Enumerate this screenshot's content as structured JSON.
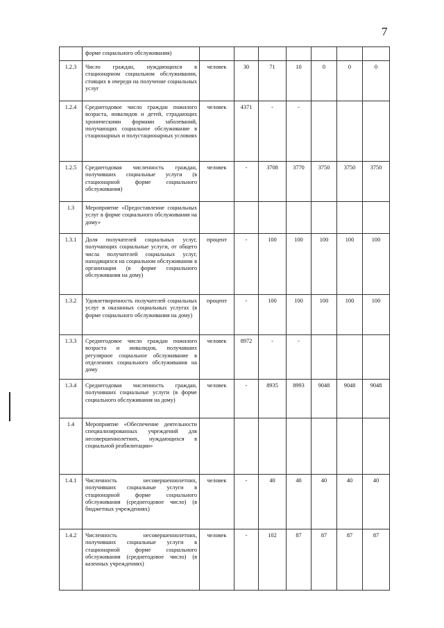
{
  "page_number": "7",
  "rows": [
    {
      "num": "",
      "name": "форме социального обслуживания)",
      "unit": "",
      "values": [
        "",
        "",
        "",
        "",
        "",
        ""
      ]
    },
    {
      "num": "1.2.3",
      "name": "Число граждан, нуждающихся в стационарном социальном обслуживании, стоящих в очереди на получение социальных услуг",
      "unit": "человек",
      "values": [
        "30",
        "71",
        "10",
        "0",
        "0",
        "0"
      ]
    },
    {
      "num": "1.2.4",
      "name": "Среднегодовое число граждан пожилого возраста, инвалидов и детей, страдающих хроническими формами заболеваний, получающих социальное обслуживание в стационарных и полустационарных условиях",
      "unit": "человек",
      "values": [
        "4371",
        "-",
        "-",
        "",
        "",
        ""
      ]
    },
    {
      "num": "1.2.5",
      "name": "Среднегодовая численность граждан, получивших социальные услуги (в стационарной форме социального обслуживания)",
      "unit": "человек",
      "values": [
        "-",
        "3708",
        "3770",
        "3750",
        "3750",
        "3750"
      ]
    },
    {
      "num": "1.3",
      "name": "Мероприятие «Предоставление социальных услуг в форме социального обслуживания на дому»",
      "unit": "",
      "values": [
        "",
        "",
        "",
        "",
        "",
        ""
      ]
    },
    {
      "num": "1.3.1",
      "name": "Доля получателей социальных услуг, получающих социальные услуги, от общего числа получателей социальных услуг, находящихся на социальном обслуживании в организации (в форме социального обслуживания на дому)",
      "unit": "процент",
      "values": [
        "-",
        "100",
        "100",
        "100",
        "100",
        "100"
      ]
    },
    {
      "num": "1.3.2",
      "name": "Удовлетворенность получателей социальных услуг в оказанных социальных услугах (в форме социального обслуживания на дому)",
      "unit": "процент",
      "values": [
        "-",
        "100",
        "100",
        "100",
        "100",
        "100"
      ]
    },
    {
      "num": "1.3.3",
      "name": "Среднегодовое число граждан пожилого возраста и инвалидов, получавших регулярное социальное обслуживание в отделениях социального обслуживания на дому",
      "unit": "человек",
      "values": [
        "8972",
        "-",
        "-",
        "",
        "",
        ""
      ]
    },
    {
      "num": "1.3.4",
      "name": "Среднегодовая численность граждан, получивших социальные услуги (в форме социального обслуживания на дому)",
      "unit": "человек",
      "values": [
        "-",
        "8935",
        "8993",
        "9048",
        "9048",
        "9048"
      ]
    },
    {
      "num": "1.4",
      "name": "Мероприятие «Обеспечение деятельности специализированных учреждений для несовершеннолетних, нуждающихся в социальной реабилитации»",
      "unit": "",
      "values": [
        "",
        "",
        "",
        "",
        "",
        ""
      ]
    },
    {
      "num": "1.4.1",
      "name": "Численность несовершеннолетних, получивших социальные услуги в стационарной форме социального обслуживания (среднегодовое число) (в бюджетных учреждениях)",
      "unit": "человек",
      "values": [
        "-",
        "40",
        "40",
        "40",
        "40",
        "40"
      ]
    },
    {
      "num": "1.4.2",
      "name": "Численность несовершеннолетних, получивших социальные услуги в стационарной форме социального обслуживания (среднегодовое число) (в казенных учреждениях)",
      "unit": "человек",
      "values": [
        "-",
        "102",
        "87",
        "87",
        "87",
        "87"
      ]
    }
  ]
}
